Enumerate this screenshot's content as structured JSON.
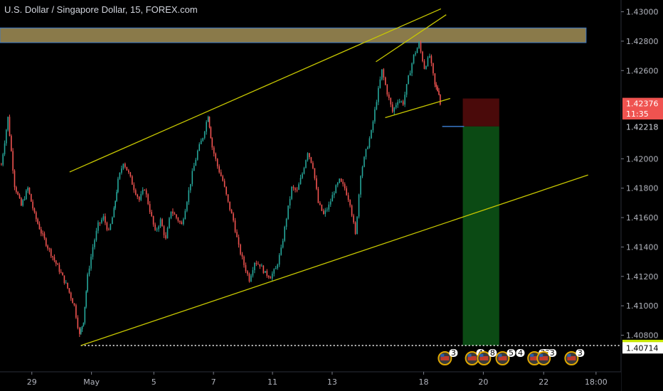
{
  "header": {
    "title": "U.S. Dollar / Singapore Dollar, 15, FOREX.com"
  },
  "chart_data": {
    "type": "candlestick",
    "title": "U.S. Dollar / Singapore Dollar, 15, FOREX.com",
    "ylim": [
      1.4058,
      1.4308
    ],
    "y_ticks": [
      "1.43000",
      "1.42800",
      "1.42600",
      "1.42000",
      "1.41800",
      "1.41600",
      "1.41400",
      "1.41200",
      "1.41000",
      "1.40800"
    ],
    "x_ticks": [
      "29",
      "May",
      "5",
      "7",
      "11",
      "13",
      "18",
      "20",
      "22",
      "18:00"
    ],
    "price_tags": [
      {
        "label": "1.42376",
        "value": 1.42376,
        "bg": "#ef5350",
        "fg": "#ffffff"
      },
      {
        "label": "11:35",
        "value": 1.42306,
        "bg": "#ef5350",
        "fg": "#ffffff"
      },
      {
        "label": "1.42218",
        "value": 1.42218,
        "bg": "#000000",
        "fg": "#d1d4dc"
      },
      {
        "label": "1.40730",
        "value": 1.4073,
        "bg": "#c8e600",
        "fg": "#000000"
      },
      {
        "label": "1.40714",
        "value": 1.40714,
        "bg": "#ffffff",
        "fg": "#000000"
      }
    ],
    "resistance_zone": {
      "from": 1.4279,
      "to": 1.4289
    },
    "trendlines": [
      {
        "name": "upper-channel",
        "x": [
          0.105,
          0.665
        ],
        "y": [
          1.4191,
          1.4302
        ]
      },
      {
        "name": "lower-channel",
        "x": [
          0.122,
          0.887
        ],
        "y": [
          1.4073,
          1.4189
        ]
      },
      {
        "name": "wedge-upper",
        "x": [
          0.567,
          0.673
        ],
        "y": [
          1.4266,
          1.4298
        ]
      },
      {
        "name": "wedge-lower",
        "x": [
          0.581,
          0.679
        ],
        "y": [
          1.4228,
          1.4241
        ]
      }
    ],
    "position": {
      "type": "short",
      "entry": 1.4222,
      "stop": 1.4241,
      "target": 1.4073
    },
    "current_price": 1.42306,
    "series": [
      {
        "values": [
          [
            0.002,
            1.4196
          ],
          [
            0.012,
            1.4228
          ],
          [
            0.022,
            1.4182
          ],
          [
            0.032,
            1.4168
          ],
          [
            0.042,
            1.418
          ],
          [
            0.052,
            1.4162
          ],
          [
            0.062,
            1.415
          ],
          [
            0.072,
            1.414
          ],
          [
            0.082,
            1.4131
          ],
          [
            0.092,
            1.4122
          ],
          [
            0.102,
            1.4112
          ],
          [
            0.112,
            1.41
          ],
          [
            0.12,
            1.408
          ],
          [
            0.126,
            1.409
          ],
          [
            0.132,
            1.412
          ],
          [
            0.14,
            1.414
          ],
          [
            0.148,
            1.4155
          ],
          [
            0.156,
            1.416
          ],
          [
            0.164,
            1.415
          ],
          [
            0.172,
            1.4165
          ],
          [
            0.178,
            1.4185
          ],
          [
            0.186,
            1.4198
          ],
          [
            0.194,
            1.419
          ],
          [
            0.202,
            1.418
          ],
          [
            0.21,
            1.4172
          ],
          [
            0.218,
            1.418
          ],
          [
            0.226,
            1.4165
          ],
          [
            0.234,
            1.415
          ],
          [
            0.242,
            1.4158
          ],
          [
            0.25,
            1.4145
          ],
          [
            0.258,
            1.4165
          ],
          [
            0.266,
            1.416
          ],
          [
            0.274,
            1.4155
          ],
          [
            0.282,
            1.4172
          ],
          [
            0.29,
            1.419
          ],
          [
            0.298,
            1.4205
          ],
          [
            0.306,
            1.4215
          ],
          [
            0.314,
            1.423
          ],
          [
            0.32,
            1.4208
          ],
          [
            0.328,
            1.4195
          ],
          [
            0.336,
            1.4185
          ],
          [
            0.344,
            1.417
          ],
          [
            0.352,
            1.4158
          ],
          [
            0.36,
            1.414
          ],
          [
            0.368,
            1.4128
          ],
          [
            0.376,
            1.4118
          ],
          [
            0.384,
            1.413
          ],
          [
            0.392,
            1.4128
          ],
          [
            0.4,
            1.4122
          ],
          [
            0.408,
            1.412
          ],
          [
            0.416,
            1.4125
          ],
          [
            0.424,
            1.4138
          ],
          [
            0.432,
            1.416
          ],
          [
            0.44,
            1.418
          ],
          [
            0.448,
            1.4178
          ],
          [
            0.456,
            1.419
          ],
          [
            0.464,
            1.4205
          ],
          [
            0.472,
            1.4195
          ],
          [
            0.48,
            1.417
          ],
          [
            0.488,
            1.4162
          ],
          [
            0.496,
            1.4168
          ],
          [
            0.504,
            1.4178
          ],
          [
            0.512,
            1.4185
          ],
          [
            0.52,
            1.418
          ],
          [
            0.528,
            1.417
          ],
          [
            0.536,
            1.4148
          ],
          [
            0.544,
            1.419
          ],
          [
            0.552,
            1.4205
          ],
          [
            0.56,
            1.4218
          ],
          [
            0.568,
            1.424
          ],
          [
            0.576,
            1.426
          ],
          [
            0.584,
            1.4245
          ],
          [
            0.592,
            1.4232
          ],
          [
            0.6,
            1.424
          ],
          [
            0.608,
            1.4238
          ],
          [
            0.616,
            1.4255
          ],
          [
            0.624,
            1.427
          ],
          [
            0.632,
            1.4278
          ],
          [
            0.64,
            1.4262
          ],
          [
            0.648,
            1.427
          ],
          [
            0.656,
            1.425
          ],
          [
            0.662,
            1.4245
          ],
          [
            0.666,
            1.423
          ]
        ]
      }
    ],
    "event_markers": [
      {
        "x": 0.671,
        "labels": [
          "3"
        ]
      },
      {
        "x": 0.712,
        "labels": [
          "4"
        ]
      },
      {
        "x": 0.73,
        "labels": [
          "8"
        ]
      },
      {
        "x": 0.758,
        "labels": [
          "5",
          "4"
        ]
      },
      {
        "x": 0.806,
        "labels": [
          "33"
        ]
      },
      {
        "x": 0.82,
        "labels": [
          "3"
        ]
      },
      {
        "x": 0.862,
        "labels": [
          "3"
        ]
      }
    ],
    "colors": {
      "background": "#000000",
      "up": "#26a69a",
      "down": "#ef5350",
      "trendline": "#c8c800",
      "zone_fill": "#8a7a4a",
      "zone_border": "#3a78c8",
      "profit": "#0b4a14",
      "loss": "#4a0a0a",
      "level_dotted": "#ffffff",
      "entry_line": "#3a78c8"
    }
  }
}
